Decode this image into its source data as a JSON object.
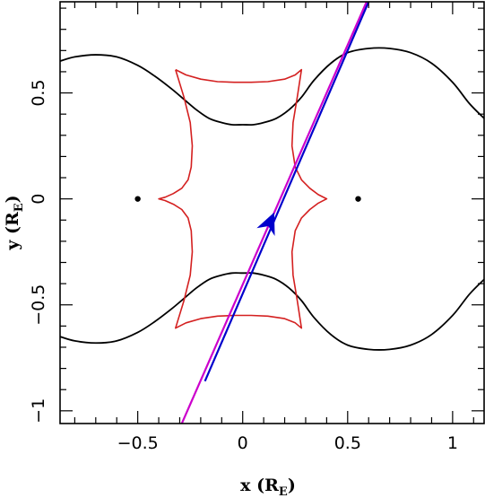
{
  "chart_data": {
    "type": "line",
    "title": "",
    "xlabel": {
      "main": "x (R",
      "sub": "E",
      "close": ")"
    },
    "ylabel": {
      "main": "y (R",
      "sub": "E",
      "close": ")"
    },
    "xlim": [
      -0.87,
      1.15
    ],
    "ylim": [
      -1.06,
      0.93
    ],
    "x_ticks": [
      -0.5,
      0,
      0.5,
      1
    ],
    "x_tick_labels": [
      "−0.5",
      "0",
      "0.5",
      "1"
    ],
    "y_ticks": [
      -1,
      -0.5,
      0,
      0.5
    ],
    "y_tick_labels": [
      "−1",
      "−0.5",
      "0",
      "0.5"
    ],
    "grid": false,
    "colors": {
      "critical_curve": "#000000",
      "caustic": "#d42020",
      "trajectory_blue": "#0000cc",
      "trajectory_magenta": "#cc00cc",
      "lens_points": "#000000"
    },
    "series": [
      {
        "style": "critical-curve",
        "x": [
          -0.87,
          -0.8,
          -0.7,
          -0.6,
          -0.5,
          -0.42,
          -0.34,
          -0.28,
          -0.22,
          -0.16,
          -0.1,
          -0.05,
          0,
          0.05,
          0.1,
          0.16,
          0.22,
          0.28,
          0.34,
          0.42,
          0.5,
          0.6,
          0.7,
          0.8,
          0.9,
          1.0,
          1.08,
          1.15
        ],
        "y": [
          0.65,
          0.67,
          0.68,
          0.67,
          0.63,
          0.58,
          0.52,
          0.47,
          0.42,
          0.38,
          0.36,
          0.35,
          0.35,
          0.35,
          0.36,
          0.38,
          0.42,
          0.48,
          0.56,
          0.64,
          0.69,
          0.71,
          0.71,
          0.69,
          0.64,
          0.55,
          0.45,
          0.38
        ]
      },
      {
        "style": "critical-curve",
        "x": [
          -0.87,
          -0.8,
          -0.7,
          -0.6,
          -0.5,
          -0.42,
          -0.34,
          -0.28,
          -0.22,
          -0.16,
          -0.1,
          -0.05,
          0,
          0.05,
          0.1,
          0.16,
          0.22,
          0.28,
          0.34,
          0.42,
          0.5,
          0.6,
          0.7,
          0.8,
          0.9,
          1.0,
          1.08,
          1.15
        ],
        "y": [
          -0.65,
          -0.67,
          -0.68,
          -0.67,
          -0.63,
          -0.58,
          -0.52,
          -0.47,
          -0.42,
          -0.38,
          -0.36,
          -0.35,
          -0.35,
          -0.35,
          -0.36,
          -0.38,
          -0.42,
          -0.48,
          -0.56,
          -0.64,
          -0.69,
          -0.71,
          -0.71,
          -0.69,
          -0.64,
          -0.55,
          -0.45,
          -0.38
        ]
      },
      {
        "style": "caustic",
        "x": [
          -0.32,
          -0.27,
          -0.2,
          -0.12,
          -0.04,
          0.04,
          0.12,
          0.2,
          0.25,
          0.28,
          0.26,
          0.24,
          0.235,
          0.25,
          0.28,
          0.32,
          0.36,
          0.4,
          0.36,
          0.32,
          0.28,
          0.25,
          0.235,
          0.24,
          0.26,
          0.28,
          0.25,
          0.2,
          0.12,
          0.04,
          -0.04,
          -0.12,
          -0.2,
          -0.27,
          -0.32,
          -0.28,
          -0.25,
          -0.24,
          -0.245,
          -0.26,
          -0.29,
          -0.33,
          -0.37,
          -0.4,
          -0.37,
          -0.33,
          -0.29,
          -0.26,
          -0.245,
          -0.24,
          -0.25,
          -0.28,
          -0.32
        ],
        "y": [
          0.61,
          0.585,
          0.565,
          0.553,
          0.55,
          0.55,
          0.553,
          0.565,
          0.585,
          0.61,
          0.48,
          0.36,
          0.25,
          0.15,
          0.09,
          0.05,
          0.02,
          0.0,
          -0.02,
          -0.05,
          -0.09,
          -0.15,
          -0.25,
          -0.36,
          -0.48,
          -0.61,
          -0.585,
          -0.565,
          -0.553,
          -0.55,
          -0.55,
          -0.553,
          -0.565,
          -0.585,
          -0.61,
          -0.48,
          -0.36,
          -0.25,
          -0.15,
          -0.09,
          -0.05,
          -0.025,
          -0.008,
          0.0,
          0.008,
          0.025,
          0.05,
          0.09,
          0.15,
          0.25,
          0.36,
          0.48,
          0.61
        ]
      },
      {
        "style": "trajectory-magenta",
        "x": [
          -0.29,
          0.59
        ],
        "y": [
          -1.06,
          0.93
        ]
      },
      {
        "style": "trajectory-blue",
        "x": [
          -0.18,
          0.6
        ],
        "y": [
          -0.86,
          0.93
        ]
      }
    ],
    "lens_points": [
      {
        "x": -0.5,
        "y": 0.0
      },
      {
        "x": 0.55,
        "y": 0.0
      }
    ],
    "arrow": {
      "x": 0.13,
      "y": -0.11,
      "direction_x": 0.436,
      "direction_y": 1.0
    }
  }
}
